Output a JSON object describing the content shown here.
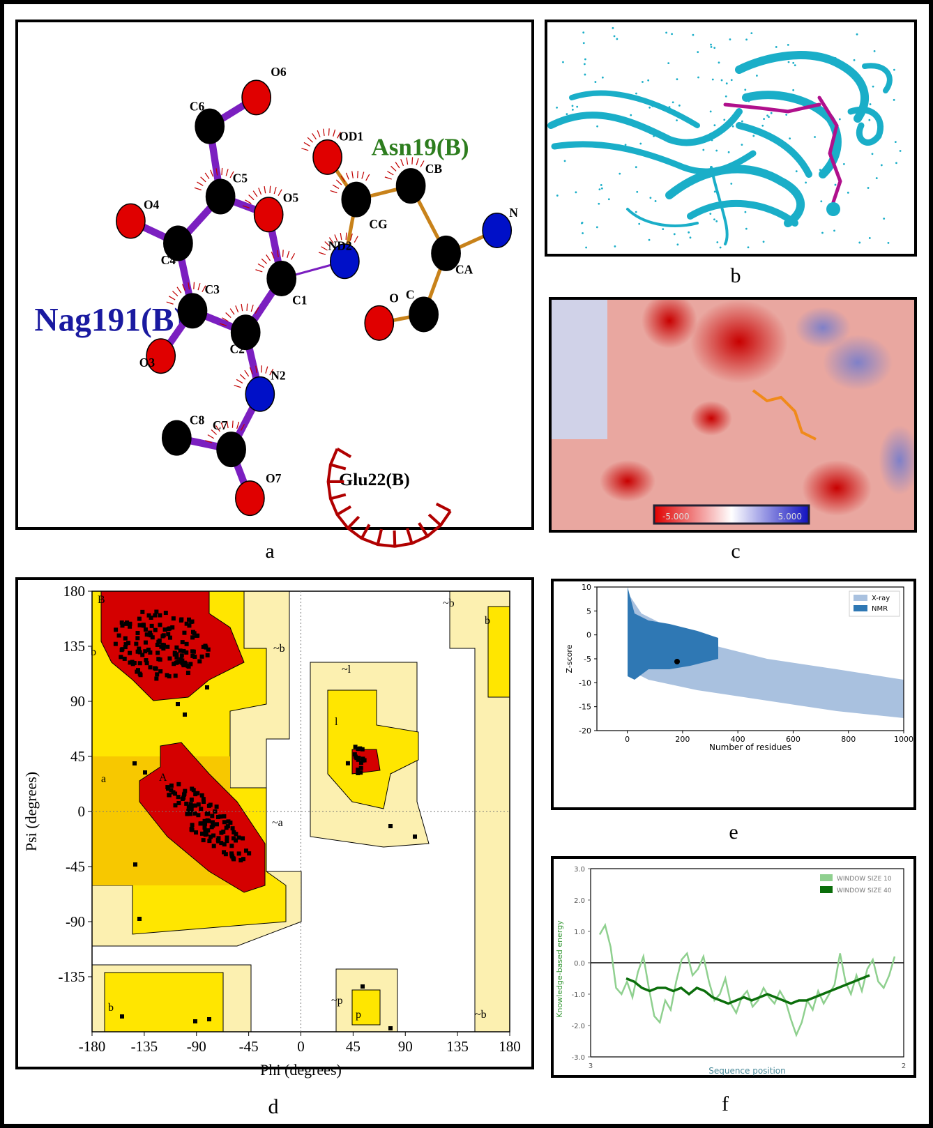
{
  "panel_labels": [
    "a",
    "b",
    "c",
    "d",
    "e",
    "f"
  ],
  "a": {
    "residues": [
      "Nag191(B)",
      "Asn19(B)",
      "Glu22(B)"
    ],
    "atoms": [
      {
        "label": "O6",
        "color": "#e00000"
      },
      {
        "label": "C6",
        "color": "#000000"
      },
      {
        "label": "C5",
        "color": "#000000"
      },
      {
        "label": "O5",
        "color": "#e00000"
      },
      {
        "label": "O4",
        "color": "#e00000"
      },
      {
        "label": "C4",
        "color": "#000000"
      },
      {
        "label": "C1",
        "color": "#000000"
      },
      {
        "label": "ND2",
        "color": "#0010c8"
      },
      {
        "label": "CG",
        "color": "#000000"
      },
      {
        "label": "OD1",
        "color": "#e00000"
      },
      {
        "label": "CB",
        "color": "#000000"
      },
      {
        "label": "CA",
        "color": "#000000"
      },
      {
        "label": "N",
        "color": "#0010c8"
      },
      {
        "label": "C",
        "color": "#000000"
      },
      {
        "label": "O",
        "color": "#e00000"
      },
      {
        "label": "C3",
        "color": "#000000"
      },
      {
        "label": "C2",
        "color": "#000000"
      },
      {
        "label": "O3",
        "color": "#e00000"
      },
      {
        "label": "N2",
        "color": "#0010c8"
      },
      {
        "label": "C7",
        "color": "#000000"
      },
      {
        "label": "C8",
        "color": "#000000"
      },
      {
        "label": "O7",
        "color": "#e00000"
      }
    ]
  },
  "c": {
    "scale_min": "-5.000",
    "scale_max": "5.000"
  },
  "d": {
    "xlabel": "Phi (degrees)",
    "ylabel": "Psi (degrees)",
    "xlim": [
      -180,
      180
    ],
    "ylim": [
      -180,
      180
    ],
    "xticks": [
      -180,
      -135,
      -90,
      -45,
      0,
      45,
      90,
      135,
      180
    ],
    "yticks": [
      -135,
      -90,
      -45,
      0,
      45,
      90,
      135,
      180
    ],
    "regions": [
      "b",
      "~b",
      "a",
      "~a",
      "A",
      "l",
      "~l",
      "~p",
      "p",
      "~b",
      "b",
      "~b",
      "b",
      "B"
    ]
  },
  "e": {
    "xlabel": "Number of residues",
    "ylabel": "Z-score",
    "xlim": [
      -110,
      1000
    ],
    "ylim": [
      -20,
      10
    ],
    "xticks": [
      0,
      200,
      400,
      600,
      800,
      1000
    ],
    "yticks": [
      -20,
      -15,
      -10,
      -5,
      0,
      5,
      10
    ],
    "legend": [
      {
        "name": "X-ray",
        "color": "#a9c1df"
      },
      {
        "name": "NMR",
        "color": "#2f78b4"
      }
    ]
  },
  "f": {
    "xlabel": "Sequence position",
    "ylabel": "Knowledge-based energy",
    "x_end_labels": [
      "3",
      "2"
    ],
    "ylim": [
      -3,
      3
    ],
    "yticks": [
      {
        "value": -3,
        "label": "-3.0"
      },
      {
        "value": -2,
        "label": "-2.0"
      },
      {
        "value": -1,
        "label": "-1.0"
      },
      {
        "value": 0,
        "label": "0.0"
      },
      {
        "value": 1,
        "label": "1.0"
      },
      {
        "value": 2,
        "label": "2.0"
      },
      {
        "value": 3,
        "label": "3.0"
      }
    ],
    "series": [
      {
        "name": "WINDOW SIZE 10",
        "color": "#8fd08f",
        "values": [
          0.9,
          1.2,
          0.5,
          -0.8,
          -1.0,
          -0.6,
          -1.1,
          -0.3,
          0.2,
          -0.8,
          -1.7,
          -1.9,
          -1.2,
          -1.5,
          -0.6,
          0.1,
          0.3,
          -0.4,
          -0.2,
          0.2,
          -0.6,
          -1.2,
          -1.0,
          -0.5,
          -1.3,
          -1.6,
          -1.1,
          -0.9,
          -1.4,
          -1.2,
          -0.8,
          -1.1,
          -1.3,
          -0.9,
          -1.2,
          -1.8,
          -2.3,
          -1.9,
          -1.2,
          -1.5,
          -0.9,
          -1.3,
          -1.0,
          -0.7,
          0.3,
          -0.6,
          -1.0,
          -0.4,
          -0.9,
          -0.2,
          0.1,
          -0.6,
          -0.8,
          -0.4,
          0.2
        ]
      },
      {
        "name": "WINDOW SIZE 40",
        "color": "#0b6e0b",
        "values": [
          -0.5,
          -0.6,
          -0.8,
          -0.9,
          -0.8,
          -0.8,
          -0.9,
          -0.8,
          -1.0,
          -0.8,
          -0.9,
          -1.1,
          -1.2,
          -1.3,
          -1.2,
          -1.1,
          -1.2,
          -1.1,
          -1.0,
          -1.1,
          -1.2,
          -1.3,
          -1.2,
          -1.2,
          -1.1,
          -1.0,
          -0.9,
          -0.8,
          -0.7,
          -0.6,
          -0.5,
          -0.4
        ]
      }
    ]
  }
}
